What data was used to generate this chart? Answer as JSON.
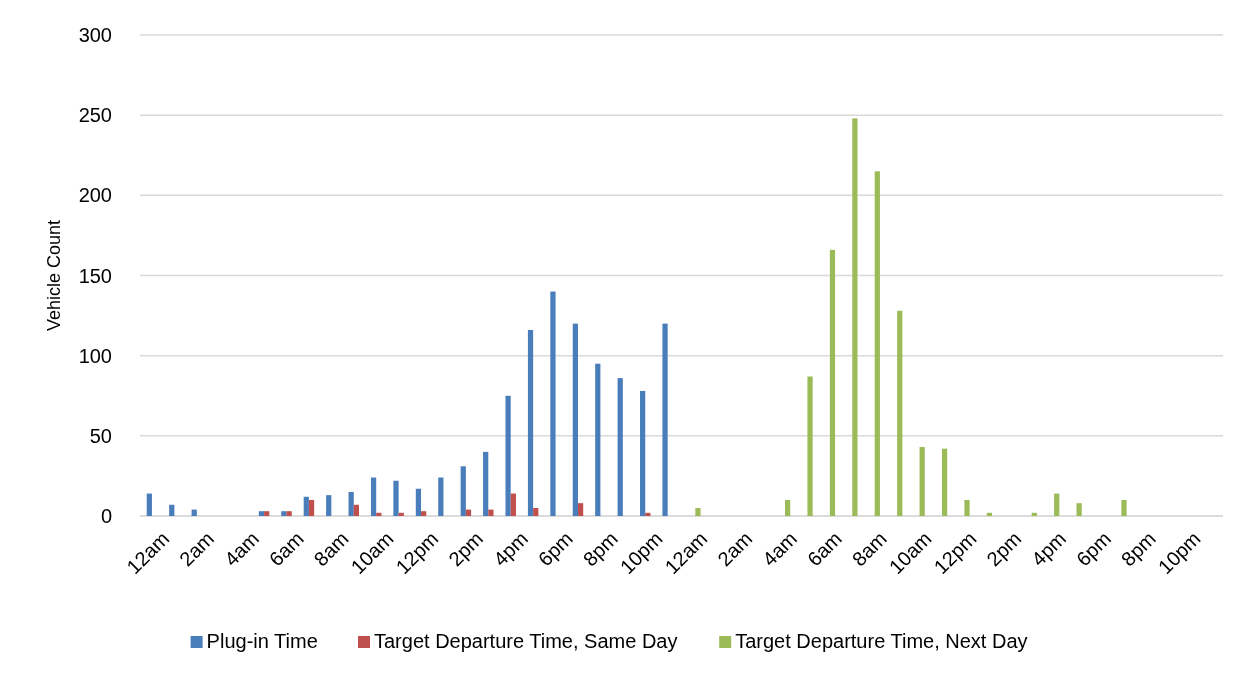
{
  "chart_data": {
    "type": "bar",
    "ylabel": "Vehicle Count",
    "categories": [
      "12am",
      null,
      "2am",
      null,
      "4am",
      null,
      "6am",
      null,
      "8am",
      null,
      "10am",
      null,
      "12pm",
      null,
      "2pm",
      null,
      "4pm",
      null,
      "6pm",
      null,
      "8pm",
      null,
      "10pm",
      null,
      "12am",
      null,
      "2am",
      null,
      "4am",
      null,
      "6am",
      null,
      "8am",
      null,
      "10am",
      null,
      "12pm",
      null,
      "2pm",
      null,
      "4pm",
      null,
      "6pm",
      null,
      "8pm",
      null,
      "10pm",
      null
    ],
    "series": [
      {
        "name": "Plug-in Time",
        "color": "#4a7ebb",
        "values": [
          14,
          7,
          4,
          0,
          0,
          3,
          3,
          12,
          13,
          15,
          24,
          22,
          17,
          24,
          31,
          40,
          75,
          116,
          140,
          120,
          95,
          86,
          78,
          120,
          null,
          null,
          null,
          null,
          null,
          null,
          null,
          null,
          null,
          null,
          null,
          null,
          null,
          null,
          null,
          null,
          null,
          null,
          null,
          null,
          null,
          null,
          null,
          null
        ]
      },
      {
        "name": "Target Departure Time, Same Day",
        "color": "#c0504d",
        "values": [
          0,
          0,
          0,
          0,
          0,
          3,
          3,
          10,
          0,
          7,
          2,
          2,
          3,
          0,
          4,
          4,
          14,
          5,
          0,
          8,
          0,
          0,
          2,
          0,
          null,
          null,
          null,
          null,
          null,
          null,
          null,
          null,
          null,
          null,
          null,
          null,
          null,
          null,
          null,
          null,
          null,
          null,
          null,
          null,
          null,
          null,
          null,
          null
        ]
      },
      {
        "name": "Target Departure Time, Next Day",
        "color": "#9bbb59",
        "values": [
          null,
          null,
          null,
          null,
          null,
          null,
          null,
          null,
          null,
          null,
          null,
          null,
          null,
          null,
          null,
          null,
          null,
          null,
          null,
          null,
          null,
          null,
          null,
          null,
          5,
          0,
          0,
          0,
          10,
          87,
          166,
          248,
          215,
          128,
          43,
          42,
          10,
          2,
          0,
          2,
          14,
          8,
          0,
          10,
          0,
          0,
          0,
          0
        ]
      }
    ],
    "ylim": [
      0,
      300
    ],
    "yticks": [
      0,
      50,
      100,
      150,
      200,
      250,
      300
    ],
    "grid": "y",
    "legend": "bottom"
  }
}
